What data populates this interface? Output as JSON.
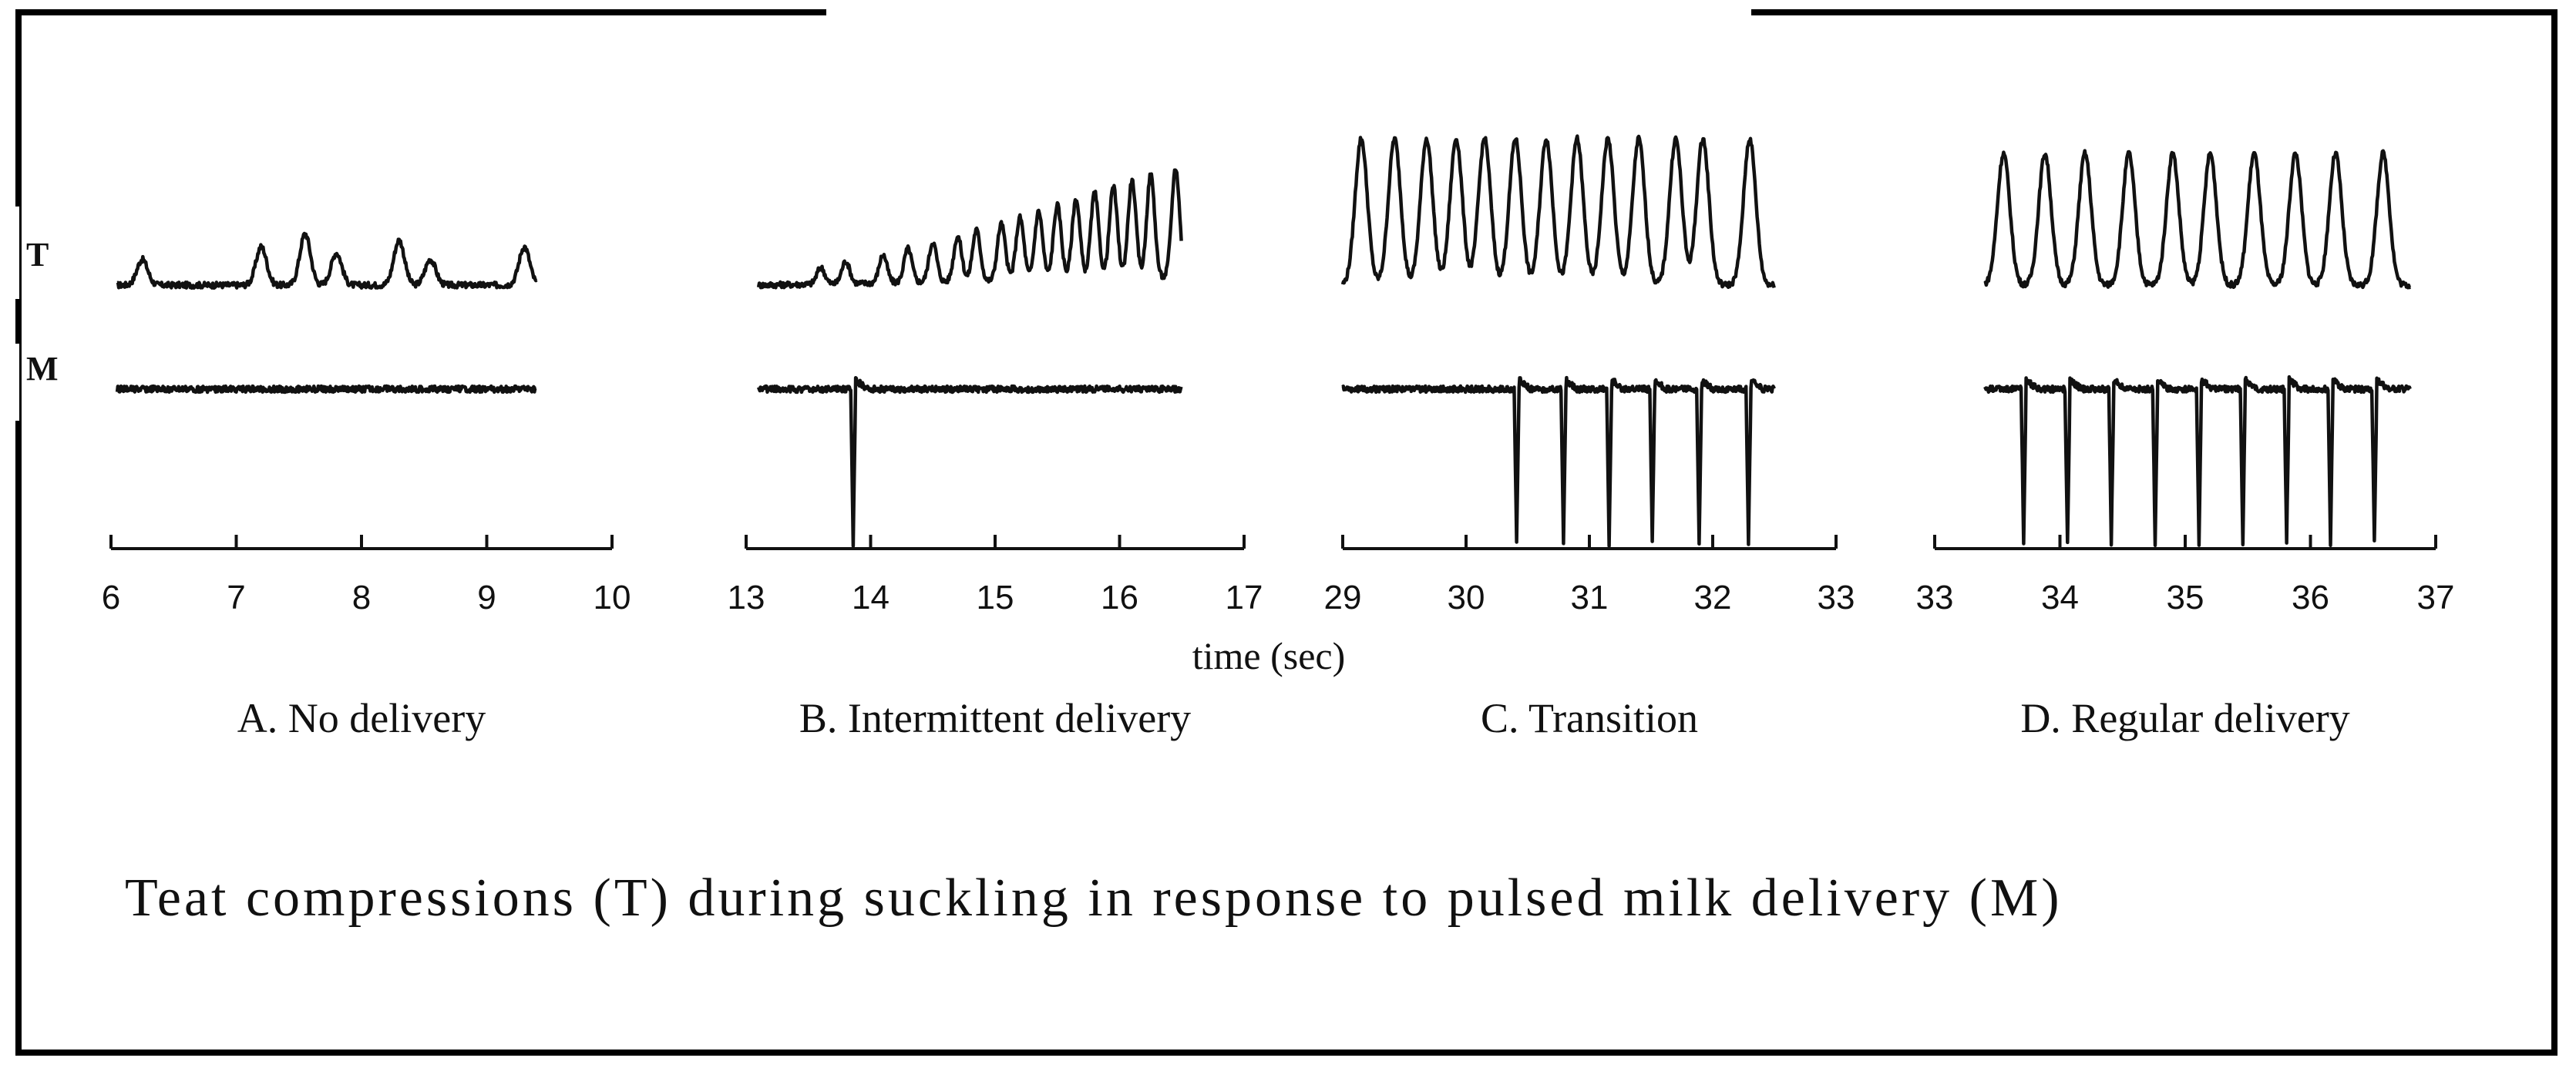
{
  "row_labels": {
    "teat": "T",
    "milk": "M"
  },
  "axis_title": "time (sec)",
  "figure_caption": "Teat compressions (T) during suckling in response to pulsed milk delivery (M)",
  "colors": {
    "trace": "#111111",
    "background": "#ffffff",
    "frame": "#000000"
  },
  "chart_data": [
    {
      "type": "line",
      "panel": "A",
      "caption": "A. No delivery",
      "xlabel": "time (sec)",
      "xlim": [
        6,
        10
      ],
      "ticks": [
        "6",
        "7",
        "8",
        "9",
        "10"
      ],
      "tick_values": [
        6,
        7,
        8,
        9,
        10
      ],
      "trace_range": [
        6.05,
        9.4
      ],
      "series": [
        {
          "name": "T",
          "pattern": "irregular",
          "peak_times": [
            6.25,
            7.2,
            7.55,
            7.8,
            8.3,
            8.55,
            9.3
          ],
          "peak_height": 0.35
        },
        {
          "name": "M",
          "pattern": "flat",
          "pulses": []
        }
      ],
      "grid": false
    },
    {
      "type": "line",
      "panel": "B",
      "caption": "B. Intermittent  delivery",
      "xlabel": "time (sec)",
      "xlim": [
        13,
        17
      ],
      "ticks": [
        "13",
        "14",
        "15",
        "16",
        "17"
      ],
      "tick_values": [
        13,
        14,
        15,
        16,
        17
      ],
      "trace_range": [
        13.1,
        16.5
      ],
      "series": [
        {
          "name": "T",
          "pattern": "ramping",
          "peak_times": [
            13.6,
            13.8,
            14.1,
            14.3,
            14.5,
            14.7,
            14.85,
            15.05,
            15.2,
            15.35,
            15.5,
            15.65,
            15.8,
            15.95,
            16.1,
            16.25,
            16.45
          ],
          "peak_height": 0.75
        },
        {
          "name": "M",
          "pattern": "pulsed",
          "pulses": [
            13.85
          ]
        }
      ],
      "grid": false
    },
    {
      "type": "line",
      "panel": "C",
      "caption": "C. Transition",
      "xlabel": "time (sec)",
      "xlim": [
        29,
        33
      ],
      "ticks": [
        "29",
        "30",
        "31",
        "32",
        "33"
      ],
      "tick_values": [
        29,
        30,
        31,
        32,
        33
      ],
      "trace_range": [
        29.0,
        32.5
      ],
      "series": [
        {
          "name": "T",
          "pattern": "regular",
          "peak_times": [
            29.15,
            29.42,
            29.68,
            29.92,
            30.15,
            30.4,
            30.65,
            30.9,
            31.15,
            31.4,
            31.7,
            31.92,
            32.3
          ],
          "peak_height": 1.0
        },
        {
          "name": "M",
          "pattern": "pulsed",
          "pulses": [
            30.4,
            30.78,
            31.15,
            31.5,
            31.88,
            32.28
          ]
        }
      ],
      "grid": false
    },
    {
      "type": "line",
      "panel": "D",
      "caption": "D. Regular delivery",
      "xlabel": "time (sec)",
      "xlim": [
        33,
        37
      ],
      "ticks": [
        "33",
        "34",
        "35",
        "36",
        "37"
      ],
      "tick_values": [
        33,
        34,
        35,
        36,
        37
      ],
      "trace_range": [
        33.4,
        36.8
      ],
      "series": [
        {
          "name": "T",
          "pattern": "regular",
          "peak_times": [
            33.55,
            33.88,
            34.2,
            34.55,
            34.9,
            35.2,
            35.55,
            35.88,
            36.2,
            36.58
          ],
          "peak_height": 0.9
        },
        {
          "name": "M",
          "pattern": "pulsed",
          "pulses": [
            33.7,
            34.05,
            34.4,
            34.75,
            35.1,
            35.45,
            35.8,
            36.15,
            36.5
          ]
        }
      ],
      "grid": false
    }
  ]
}
